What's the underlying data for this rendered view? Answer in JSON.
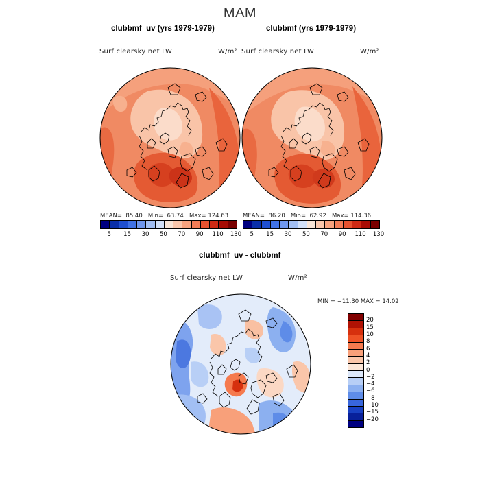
{
  "title": "MAM",
  "panels": [
    {
      "title": "clubbmf_uv (yrs 1979-1979)",
      "var_label": "Surf clearsky net LW",
      "units": "W/m²",
      "mean_label": "MEAN=",
      "mean": "85.40",
      "min_label": "Min=",
      "min": "63.74",
      "max_label": "Max=",
      "max": "124.63"
    },
    {
      "title": "clubbmf (yrs 1979-1979)",
      "var_label": "Surf clearsky net LW",
      "units": "W/m²",
      "mean_label": "MEAN=",
      "mean": "86.20",
      "min_label": "Min=",
      "min": "62.92",
      "max_label": "Max=",
      "max": "114.36"
    }
  ],
  "diff": {
    "title": "clubbmf_uv - clubbmf",
    "var_label": "Surf clearsky net LW",
    "units": "W/m²",
    "range_text": "MIN = −11.30 MAX =  14.02"
  },
  "colorbar_abs": {
    "ticks": [
      "5",
      "15",
      "30",
      "50",
      "70",
      "90",
      "110",
      "130"
    ],
    "colors": [
      "#000080",
      "#0a2fa8",
      "#1f4fd0",
      "#4173e6",
      "#6f97ee",
      "#a2bff4",
      "#d2e0f8",
      "#f8e4d6",
      "#f9c6ab",
      "#f7a27e",
      "#f27c56",
      "#e6522f",
      "#cf2a14",
      "#a80c04",
      "#7a0000"
    ]
  },
  "colorbar_diff": {
    "ticks": [
      "20",
      "15",
      "10",
      "8",
      "6",
      "4",
      "2",
      "0",
      "−2",
      "−4",
      "−6",
      "−8",
      "−10",
      "−15",
      "−20"
    ],
    "colors": [
      "#800000",
      "#b01204",
      "#d6300e",
      "#ee5226",
      "#f57a4e",
      "#f8a07a",
      "#fac6aa",
      "#fbe6d8",
      "#dde8fa",
      "#b8cff6",
      "#8cb0f0",
      "#5e8ce8",
      "#3866dc",
      "#1840c2",
      "#08209a",
      "#000080"
    ]
  }
}
